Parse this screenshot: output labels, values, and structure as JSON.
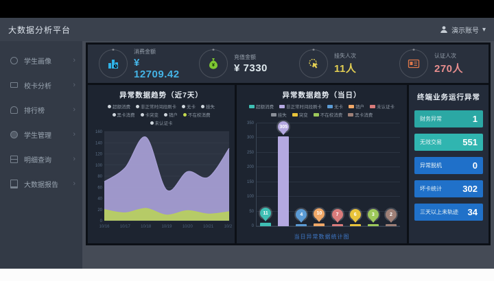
{
  "header": {
    "title": "大数据分析平台",
    "user": {
      "name": "演示账号",
      "caret": "▾"
    }
  },
  "sidebar": {
    "items": [
      {
        "label": "学生画像",
        "icon": "student-portrait-icon"
      },
      {
        "label": "校卡分析",
        "icon": "card-analysis-icon"
      },
      {
        "label": "排行榜",
        "icon": "ranking-icon"
      },
      {
        "label": "学生管理",
        "icon": "student-manage-icon"
      },
      {
        "label": "明细查询",
        "icon": "detail-query-icon"
      },
      {
        "label": "大数据报告",
        "icon": "bigdata-report-icon"
      }
    ]
  },
  "kpis": [
    {
      "label": "消费金额",
      "value": "¥ 12709.42",
      "value_color": "#45b4e6",
      "icon": "bar-chart-icon"
    },
    {
      "label": "充值金额",
      "value": "¥ 7330",
      "value_color": "#dfe9ee",
      "icon": "money-bag-icon"
    },
    {
      "label": "挂失人次",
      "value": "11人",
      "value_color": "#e3cf53",
      "icon": "click-icon"
    },
    {
      "label": "认证人次",
      "value": "270人",
      "value_color": "#e88e8e",
      "icon": "id-card-icon"
    }
  ],
  "trend_week": {
    "title": "异常数据趋势（近7天）",
    "legend_rows": [
      [
        {
          "label": "超额消费",
          "dot": "#cfd6dd"
        },
        {
          "label": "非正常时间段刷卡",
          "dot": "#cfd6dd"
        },
        {
          "label": "无卡",
          "dot": "#cfd6dd"
        },
        {
          "label": "挂失",
          "dot": "#cfd6dd"
        }
      ],
      [
        {
          "label": "黑卡消费",
          "dot": "#cfd6dd"
        },
        {
          "label": "卡突变",
          "dot": "#cfd6dd"
        },
        {
          "label": "销户",
          "dot": "#cfd6dd"
        },
        {
          "label": "不在校消费",
          "dot": "#c3d94e"
        }
      ],
      [
        {
          "label": "未认证卡",
          "dot": "#cfd6dd"
        }
      ]
    ],
    "chart_data": {
      "type": "area",
      "x": [
        "10/16",
        "10/17",
        "10/18",
        "10/19",
        "10/20",
        "10/21",
        "10/22"
      ],
      "series": [
        {
          "name": "非正常时间段刷卡",
          "color": "#a89fd6",
          "values": [
            70,
            95,
            150,
            55,
            88,
            78,
            130
          ]
        },
        {
          "name": "不在校消费",
          "color": "#b9cf5e",
          "values": [
            20,
            14,
            22,
            10,
            18,
            12,
            16
          ]
        }
      ],
      "ylim": [
        0,
        160
      ],
      "ytick_step": 20
    }
  },
  "trend_day": {
    "title": "异常数据趋势（当日）",
    "caption": "当日异常数据统计图",
    "legend_rows": [
      [
        {
          "label": "超额消费",
          "color": "#3fbfb4"
        },
        {
          "label": "非正常时间段刷卡",
          "color": "#b4a8e0"
        },
        {
          "label": "无卡",
          "color": "#5b9bd5"
        },
        {
          "label": "销户",
          "color": "#f0a868"
        },
        {
          "label": "未认证卡",
          "color": "#d97b7b"
        }
      ],
      [
        {
          "label": "挂失",
          "color": "#8a8f98"
        },
        {
          "label": "突变",
          "color": "#e8c33a"
        },
        {
          "label": "不在校消费",
          "color": "#9dc85a"
        },
        {
          "label": "黑卡消费",
          "color": "#9e8077"
        }
      ]
    ],
    "chart_data": {
      "type": "bar",
      "categories": [
        "超额消费",
        "非正常时间段刷卡",
        "无卡",
        "销户",
        "未认证卡",
        "突变",
        "不在校消费",
        "黑卡消费"
      ],
      "values": [
        11,
        305,
        4,
        10,
        7,
        6,
        3,
        2
      ],
      "colors": [
        "#3fbfb4",
        "#b4a8e0",
        "#5b9bd5",
        "#f0a868",
        "#d97b7b",
        "#e8c33a",
        "#9dc85a",
        "#9e8077"
      ],
      "ylim": [
        0,
        350
      ],
      "ytick_step": 50
    }
  },
  "status_panel": {
    "title": "终端业务运行异常",
    "items": [
      {
        "label": "财务异常",
        "value": "1",
        "bg": "#2ba8a4"
      },
      {
        "label": "无效交易",
        "value": "551",
        "bg": "#30b5b0"
      },
      {
        "label": "异常脱机",
        "value": "0",
        "bg": "#1f70c9"
      },
      {
        "label": "坏卡统计",
        "value": "302",
        "bg": "#2071c9"
      },
      {
        "label": "三天以上未轨迹",
        "value": "34",
        "bg": "#2071c9"
      }
    ]
  }
}
